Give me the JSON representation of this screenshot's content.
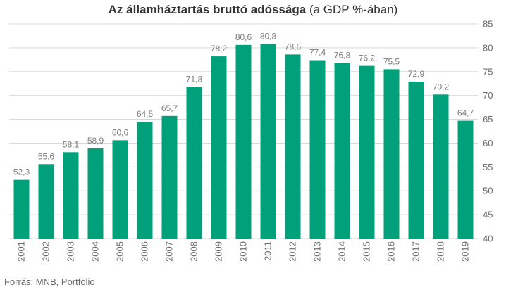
{
  "chart_data": {
    "type": "bar",
    "title": "Az államháztartás bruttó adóssága",
    "subtitle": "(a GDP %-ában)",
    "categories": [
      "2001",
      "2002",
      "2003",
      "2004",
      "2005",
      "2006",
      "2007",
      "2008",
      "2009",
      "2010",
      "2011",
      "2012",
      "2013",
      "2014",
      "2015",
      "2016",
      "2017",
      "2018",
      "2019"
    ],
    "values": [
      52.3,
      55.6,
      58.1,
      58.9,
      60.6,
      64.5,
      65.7,
      71.8,
      78.2,
      80.6,
      80.8,
      78.6,
      77.4,
      76.8,
      76.2,
      75.5,
      72.9,
      70.2,
      64.7
    ],
    "value_labels": [
      "52,3",
      "55,6",
      "58,1",
      "58,9",
      "60,6",
      "64,5",
      "65,7",
      "71,8",
      "78,2",
      "80,6",
      "80,8",
      "78,6",
      "77,4",
      "76,8",
      "76,2",
      "75,5",
      "72,9",
      "70,2",
      "64,7"
    ],
    "xlabel": "",
    "ylabel": "",
    "ylim": [
      40,
      85
    ],
    "yticks": [
      40,
      45,
      50,
      55,
      60,
      65,
      70,
      75,
      80,
      85
    ],
    "y_axis_side": "right",
    "grid": true,
    "bar_color": "#00a07a",
    "grid_color": "#d9d9d9",
    "legend": "none"
  },
  "footer": {
    "source": "Forrás: MNB, Portfolio"
  }
}
